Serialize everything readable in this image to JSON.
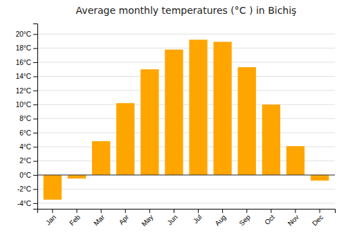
{
  "chart_data": {
    "type": "bar",
    "title": "Average monthly temperatures (°C ) in Bichiş",
    "categories": [
      "Jan",
      "Feb",
      "Mar",
      "Apr",
      "May",
      "Jun",
      "Jul",
      "Aug",
      "Sep",
      "Oct",
      "Nov",
      "Dec"
    ],
    "values": [
      -3.5,
      -0.5,
      4.8,
      10.2,
      15.0,
      17.8,
      19.2,
      18.9,
      15.3,
      10.0,
      4.1,
      -0.8
    ],
    "color": "#FFA500",
    "ylim": [
      -4.8,
      21.5
    ],
    "yticks": [
      {
        "value": -4,
        "label": "-4°C"
      },
      {
        "value": -2,
        "label": "-2°C"
      },
      {
        "value": 0,
        "label": "0°C"
      },
      {
        "value": 2,
        "label": "2°C"
      },
      {
        "value": 4,
        "label": "4°C"
      },
      {
        "value": 6,
        "label": "6°C"
      },
      {
        "value": 8,
        "label": "8°C"
      },
      {
        "value": 10,
        "label": "10°C"
      },
      {
        "value": 12,
        "label": "12°C"
      },
      {
        "value": 14,
        "label": "14°C"
      },
      {
        "value": 16,
        "label": "16°C"
      },
      {
        "value": 18,
        "label": "18°C"
      },
      {
        "value": 20,
        "label": "20°C"
      }
    ],
    "grid": true
  }
}
